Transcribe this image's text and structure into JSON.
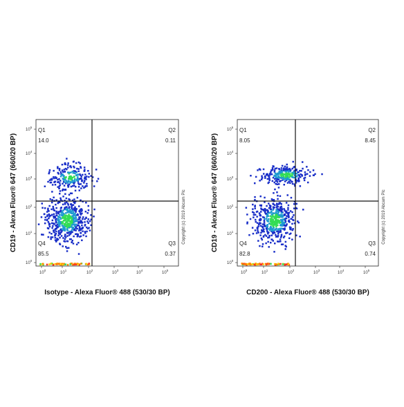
{
  "plots": [
    {
      "x_label": "Isotype - Alexa Fluor® 488 (530/30 BP)",
      "y_label": "CD19 - Alexa Fluor® 647 (660/20 BP)",
      "quadrants": [
        {
          "name": "Q1",
          "value": "14.0"
        },
        {
          "name": "Q2",
          "value": "0.11"
        },
        {
          "name": "Q3",
          "value": "0.37"
        },
        {
          "name": "Q4",
          "value": "85.5"
        }
      ]
    },
    {
      "x_label": "CD200 - Alexa Fluor® 488 (530/30 BP)",
      "y_label": "CD19 - Alexa Fluor® 647 (660/20 BP)",
      "quadrants": [
        {
          "name": "Q1",
          "value": "8.05"
        },
        {
          "name": "Q2",
          "value": "8.45"
        },
        {
          "name": "Q3",
          "value": "0.74"
        },
        {
          "name": "Q4",
          "value": "82.8"
        }
      ]
    }
  ],
  "tick_base": "10",
  "tick_exponents": [
    0,
    1,
    2,
    3,
    4,
    5
  ],
  "copyright": "Copyright (c) 2019 Abcam Plc"
}
